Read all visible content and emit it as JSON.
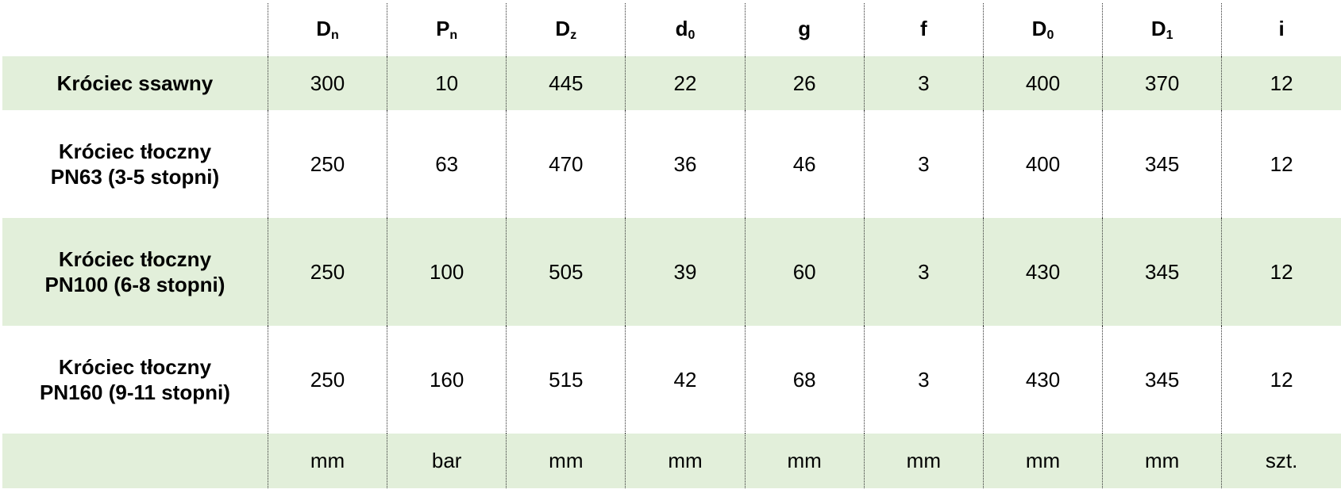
{
  "accent_color": "#e2efda",
  "headers": [
    {
      "main": "D",
      "sub": "n"
    },
    {
      "main": "P",
      "sub": "n"
    },
    {
      "main": "D",
      "sub": "z"
    },
    {
      "main": "d",
      "sub": "0"
    },
    {
      "main": "g",
      "sub": ""
    },
    {
      "main": "f",
      "sub": ""
    },
    {
      "main": "D",
      "sub": "0"
    },
    {
      "main": "D",
      "sub": "1"
    },
    {
      "main": "i",
      "sub": ""
    }
  ],
  "rows": [
    {
      "label1": "Króciec ssawny",
      "label2": "",
      "values": [
        "300",
        "10",
        "445",
        "22",
        "26",
        "3",
        "400",
        "370",
        "12"
      ]
    },
    {
      "label1": "Króciec tłoczny",
      "label2": "PN63 (3-5 stopni)",
      "values": [
        "250",
        "63",
        "470",
        "36",
        "46",
        "3",
        "400",
        "345",
        "12"
      ]
    },
    {
      "label1": "Króciec tłoczny",
      "label2": "PN100 (6-8 stopni)",
      "values": [
        "250",
        "100",
        "505",
        "39",
        "60",
        "3",
        "430",
        "345",
        "12"
      ]
    },
    {
      "label1": "Króciec tłoczny",
      "label2": "PN160 (9-11 stopni)",
      "values": [
        "250",
        "160",
        "515",
        "42",
        "68",
        "3",
        "430",
        "345",
        "12"
      ]
    }
  ],
  "units": [
    "mm",
    "bar",
    "mm",
    "mm",
    "mm",
    "mm",
    "mm",
    "mm",
    "szt."
  ]
}
